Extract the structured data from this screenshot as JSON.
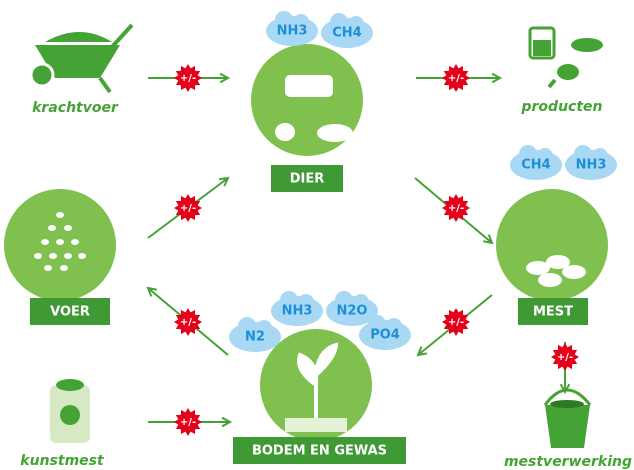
{
  "nodes": [
    {
      "label": "DIER"
    },
    {
      "label": "MEST"
    },
    {
      "label": "BODEM EN GEWAS"
    },
    {
      "label": "VOER"
    }
  ],
  "inputs": [
    "krachtvoer",
    "producten",
    "kunstmest",
    "mestverwerking"
  ],
  "gases": {
    "dier": [
      "NH3",
      "CH4"
    ],
    "mest": [
      "CH4",
      "NH3"
    ],
    "bodem": [
      "NH3",
      "N2O",
      "N2",
      "PO4"
    ]
  },
  "badges": [
    "+/-",
    "+/-",
    "+/-",
    "+/-",
    "+/-",
    "+/-",
    "+/-",
    "+/-"
  ]
}
